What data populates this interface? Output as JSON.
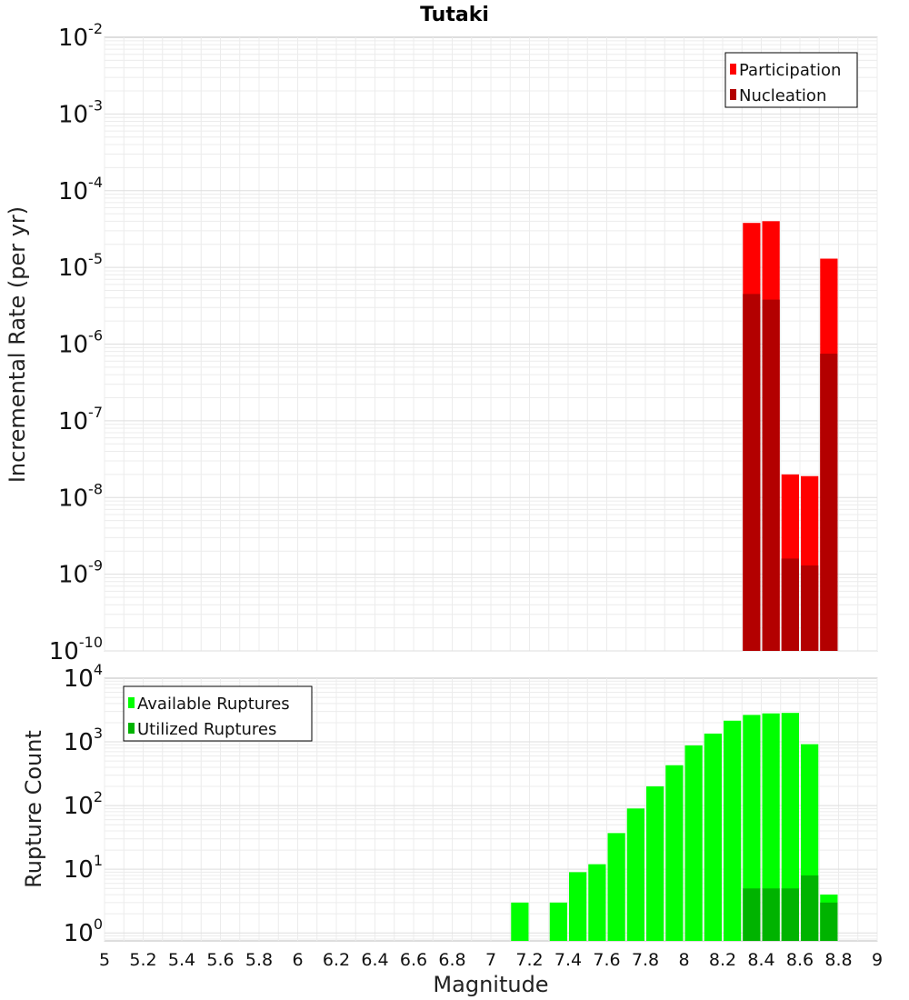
{
  "title": "Tutaki",
  "chart_data": [
    {
      "type": "bar",
      "scale": "log",
      "ylabel": "Incremental Rate (per yr)",
      "ylim": [
        1e-10,
        0.01
      ],
      "y_ticks": [
        {
          "base": "10",
          "exp": "-2"
        },
        {
          "base": "10",
          "exp": "-3"
        },
        {
          "base": "10",
          "exp": "-4"
        },
        {
          "base": "10",
          "exp": "-5"
        },
        {
          "base": "10",
          "exp": "-6"
        },
        {
          "base": "10",
          "exp": "-7"
        },
        {
          "base": "10",
          "exp": "-8"
        },
        {
          "base": "10",
          "exp": "-9"
        },
        {
          "base": "10",
          "exp": "-10"
        }
      ],
      "legend_position": "top-right",
      "series": [
        {
          "name": "Participation",
          "color": "#ff0000",
          "points": [
            {
              "x": 8.35,
              "y": 3.8e-05
            },
            {
              "x": 8.45,
              "y": 4e-05
            },
            {
              "x": 8.55,
              "y": 2e-08
            },
            {
              "x": 8.65,
              "y": 1.9e-08
            },
            {
              "x": 8.75,
              "y": 1.3e-05
            }
          ]
        },
        {
          "name": "Nucleation",
          "color": "#b30000",
          "points": [
            {
              "x": 8.35,
              "y": 4.5e-06
            },
            {
              "x": 8.45,
              "y": 3.8e-06
            },
            {
              "x": 8.55,
              "y": 1.6e-09
            },
            {
              "x": 8.65,
              "y": 1.3e-09
            },
            {
              "x": 8.75,
              "y": 7.5e-07
            }
          ]
        }
      ]
    },
    {
      "type": "bar",
      "scale": "log",
      "ylabel": "Rupture Count",
      "xlabel": "Magnitude",
      "ylim": [
        0.75,
        10000
      ],
      "xlim": [
        5,
        9
      ],
      "x_ticks": [
        "5",
        "5.2",
        "5.4",
        "5.6",
        "5.8",
        "6",
        "6.2",
        "6.4",
        "6.6",
        "6.8",
        "7",
        "7.2",
        "7.4",
        "7.6",
        "7.8",
        "8",
        "8.2",
        "8.4",
        "8.6",
        "8.8",
        "9"
      ],
      "y_ticks": [
        {
          "base": "10",
          "exp": "4"
        },
        {
          "base": "10",
          "exp": "3"
        },
        {
          "base": "10",
          "exp": "2"
        },
        {
          "base": "10",
          "exp": "1"
        },
        {
          "base": "10",
          "exp": "0"
        }
      ],
      "legend_position": "top-left",
      "series": [
        {
          "name": "Available Ruptures",
          "color": "#00ff00",
          "points": [
            {
              "x": 7.15,
              "y": 3
            },
            {
              "x": 7.35,
              "y": 3
            },
            {
              "x": 7.45,
              "y": 9
            },
            {
              "x": 7.55,
              "y": 12
            },
            {
              "x": 7.65,
              "y": 37
            },
            {
              "x": 7.75,
              "y": 90
            },
            {
              "x": 7.85,
              "y": 200
            },
            {
              "x": 7.95,
              "y": 430
            },
            {
              "x": 8.05,
              "y": 880
            },
            {
              "x": 8.15,
              "y": 1350
            },
            {
              "x": 8.25,
              "y": 2150
            },
            {
              "x": 8.35,
              "y": 2650
            },
            {
              "x": 8.45,
              "y": 2800
            },
            {
              "x": 8.55,
              "y": 2850
            },
            {
              "x": 8.65,
              "y": 920
            },
            {
              "x": 8.75,
              "y": 4
            }
          ]
        },
        {
          "name": "Utilized Ruptures",
          "color": "#00b300",
          "points": [
            {
              "x": 8.35,
              "y": 5
            },
            {
              "x": 8.45,
              "y": 5
            },
            {
              "x": 8.55,
              "y": 5
            },
            {
              "x": 8.65,
              "y": 8
            },
            {
              "x": 8.75,
              "y": 3
            }
          ]
        }
      ]
    }
  ]
}
